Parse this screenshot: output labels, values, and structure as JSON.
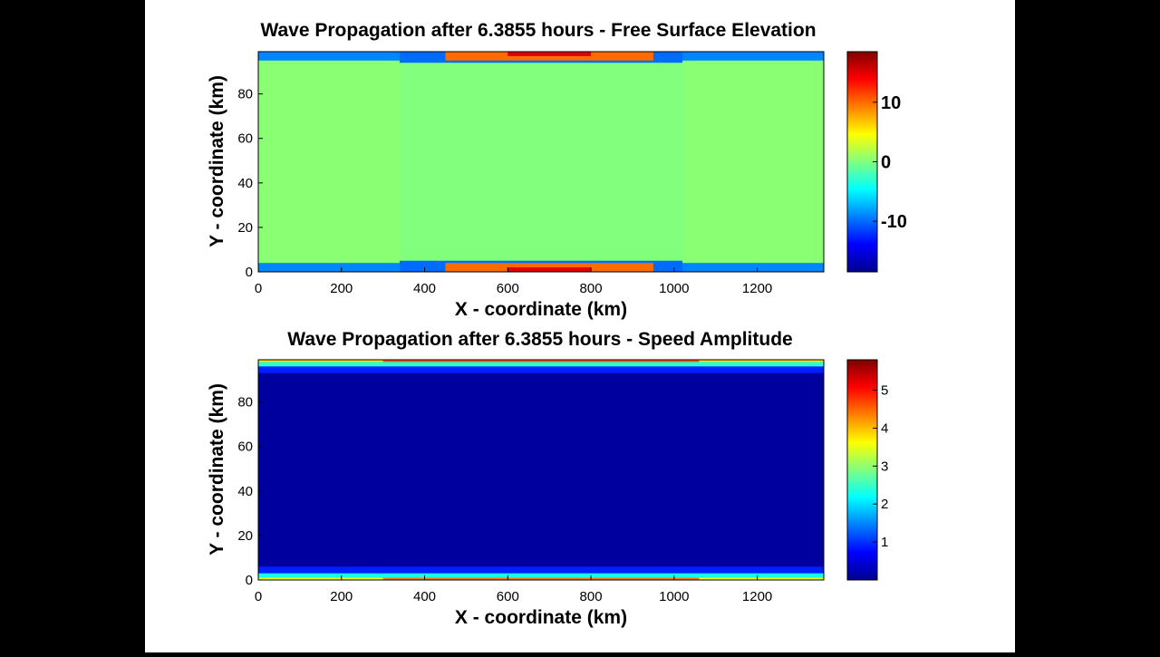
{
  "chart_data": [
    {
      "type": "heatmap",
      "title": "Wave Propagation after 6.3855 hours - Free Surface Elevation",
      "xlabel": "X - coordinate (km)",
      "ylabel": "Y - coordinate (km)",
      "xlim": [
        0,
        1360
      ],
      "ylim": [
        0,
        99
      ],
      "xticks": [
        0,
        200,
        400,
        600,
        800,
        1000,
        1200
      ],
      "yticks": [
        0,
        20,
        40,
        60,
        80
      ],
      "colormap": "jet",
      "clim": [
        -18.5,
        18.5
      ],
      "colorbar_ticks": [
        -10,
        0,
        10
      ],
      "field": {
        "background_value": 0.4,
        "central_band_x": [
          340,
          1020
        ],
        "central_band_value": 0.1,
        "edge_features": [
          {
            "x": [
              0,
              340
            ],
            "y": [
              0,
              4
            ],
            "value": -9
          },
          {
            "x": [
              340,
              1020
            ],
            "y": [
              0,
              5
            ],
            "value": -10
          },
          {
            "x": [
              1020,
              1360
            ],
            "y": [
              0,
              4
            ],
            "value": -9
          },
          {
            "x": [
              450,
              950
            ],
            "y": [
              0,
              4
            ],
            "value": 10
          },
          {
            "x": [
              600,
              800
            ],
            "y": [
              0,
              2
            ],
            "value": 15
          },
          {
            "x": [
              0,
              340
            ],
            "y": [
              95,
              99
            ],
            "value": -9
          },
          {
            "x": [
              340,
              1020
            ],
            "y": [
              94,
              99
            ],
            "value": -10
          },
          {
            "x": [
              1020,
              1360
            ],
            "y": [
              95,
              99
            ],
            "value": -9
          },
          {
            "x": [
              450,
              950
            ],
            "y": [
              95,
              99
            ],
            "value": 10
          },
          {
            "x": [
              600,
              800
            ],
            "y": [
              97,
              99
            ],
            "value": 15
          }
        ]
      }
    },
    {
      "type": "heatmap",
      "title": "Wave Propagation after 6.3855 hours - Speed Amplitude",
      "xlabel": "X - coordinate (km)",
      "ylabel": "Y - coordinate (km)",
      "xlim": [
        0,
        1360
      ],
      "ylim": [
        0,
        99
      ],
      "xticks": [
        0,
        200,
        400,
        600,
        800,
        1000,
        1200
      ],
      "yticks": [
        0,
        20,
        40,
        60,
        80
      ],
      "colormap": "jet",
      "clim": [
        0,
        5.8
      ],
      "colorbar_ticks": [
        1,
        2,
        3,
        4,
        5
      ],
      "field": {
        "background_value": 0.1,
        "edge_features": [
          {
            "x": [
              0,
              1360
            ],
            "y": [
              0,
              6
            ],
            "value": 0.9
          },
          {
            "x": [
              0,
              1360
            ],
            "y": [
              0,
              3
            ],
            "value": 2.3
          },
          {
            "x": [
              0,
              1360
            ],
            "y": [
              0,
              1
            ],
            "value": 3.6
          },
          {
            "x": [
              300,
              1060
            ],
            "y": [
              0,
              1
            ],
            "value": 4.4
          },
          {
            "x": [
              0,
              1360
            ],
            "y": [
              93,
              99
            ],
            "value": 0.9
          },
          {
            "x": [
              0,
              1360
            ],
            "y": [
              96,
              99
            ],
            "value": 2.4
          },
          {
            "x": [
              0,
              1360
            ],
            "y": [
              98,
              99
            ],
            "value": 3.8
          },
          {
            "x": [
              300,
              1060
            ],
            "y": [
              98,
              99
            ],
            "value": 4.6
          }
        ]
      }
    }
  ]
}
